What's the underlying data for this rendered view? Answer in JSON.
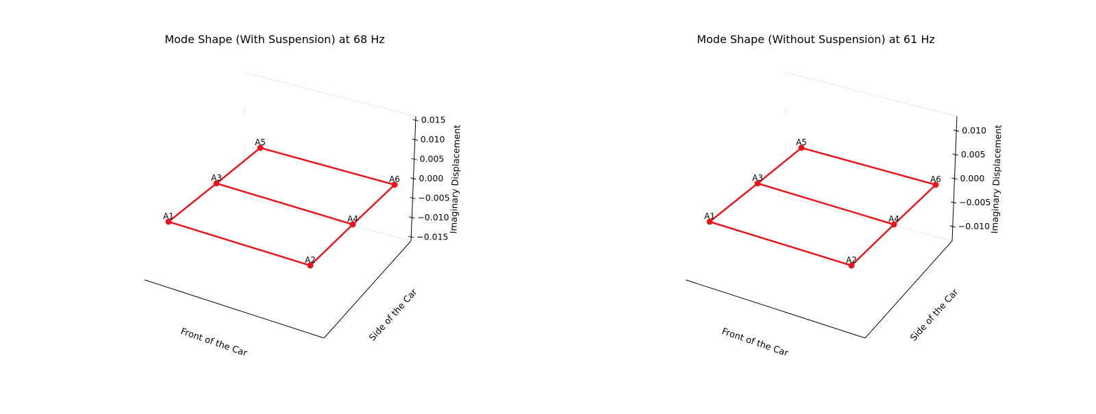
{
  "chart_data": [
    {
      "type": "3d-line",
      "title": "Mode Shape (With Suspension) at 68 Hz",
      "xlabel": "Front of the Car",
      "ylabel": "Side of the Car",
      "zlabel": "Imaginary Displacement",
      "zlim": [
        -0.016,
        0.016
      ],
      "zticks": [
        "−0.015",
        "−0.010",
        "−0.005",
        "0.000",
        "0.005",
        "0.010",
        "0.015"
      ],
      "zticks_values": [
        -0.015,
        -0.01,
        -0.005,
        0.0,
        0.005,
        0.01,
        0.015
      ],
      "grid": true,
      "points": [
        {
          "name": "A1",
          "z": 0.0
        },
        {
          "name": "A2",
          "z": 0.0
        },
        {
          "name": "A3",
          "z": 0.0
        },
        {
          "name": "A4",
          "z": 0.0
        },
        {
          "name": "A5",
          "z": 0.0
        },
        {
          "name": "A6",
          "z": 0.0
        }
      ],
      "line_color": "#e8161a"
    },
    {
      "type": "3d-line",
      "title": "Mode Shape (Without Suspension) at 61 Hz",
      "xlabel": "Front of the Car",
      "ylabel": "Side of the Car",
      "zlabel": "Imaginary Displacement",
      "zlim": [
        -0.013,
        0.013
      ],
      "zticks": [
        "−0.010",
        "−0.005",
        "0.000",
        "0.005",
        "0.010"
      ],
      "zticks_values": [
        -0.01,
        -0.005,
        0.0,
        0.005,
        0.01
      ],
      "grid": true,
      "points": [
        {
          "name": "A1",
          "z": 0.0
        },
        {
          "name": "A2",
          "z": 0.0
        },
        {
          "name": "A3",
          "z": 0.0
        },
        {
          "name": "A4",
          "z": 0.0
        },
        {
          "name": "A5",
          "z": 0.0
        },
        {
          "name": "A6",
          "z": 0.0
        }
      ],
      "line_color": "#e8161a"
    }
  ]
}
